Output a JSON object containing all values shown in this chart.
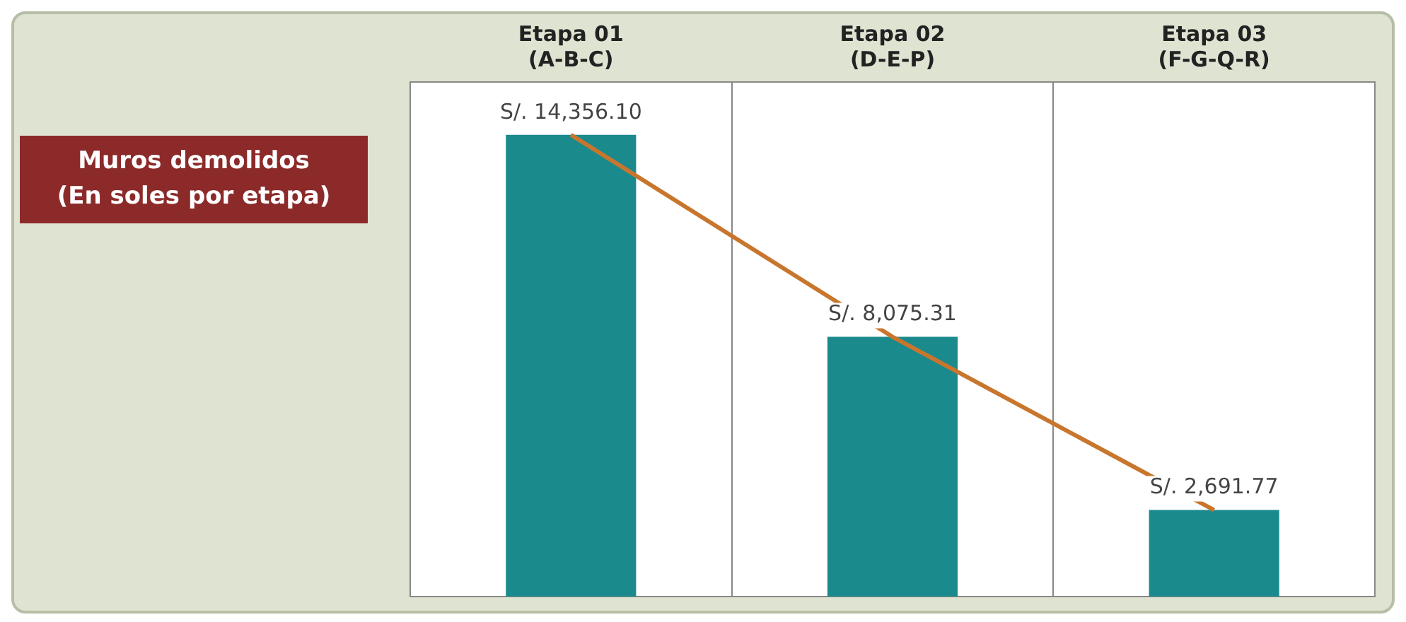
{
  "chart_data": {
    "type": "bar",
    "title": "Muros demolidos\n(En soles por etapa)",
    "categories": [
      "Etapa 01\n(A-B-C)",
      "Etapa 02\n(D-E-P)",
      "Etapa 03\n(F-G-Q-R)"
    ],
    "series": [
      {
        "color": "#1b8a8c",
        "values": [
          14356.1,
          8075.31,
          2691.77
        ]
      },
      {
        "type": "line",
        "color": "#c8762e",
        "values": [
          14356.1,
          8075.31,
          2691.77
        ],
        "value_labels": [
          "S/. 14,356.10",
          "S/. 8,075.31",
          "S/. 2,691.77"
        ],
        "marker": "none"
      }
    ],
    "grid": "x",
    "legend": false
  }
}
